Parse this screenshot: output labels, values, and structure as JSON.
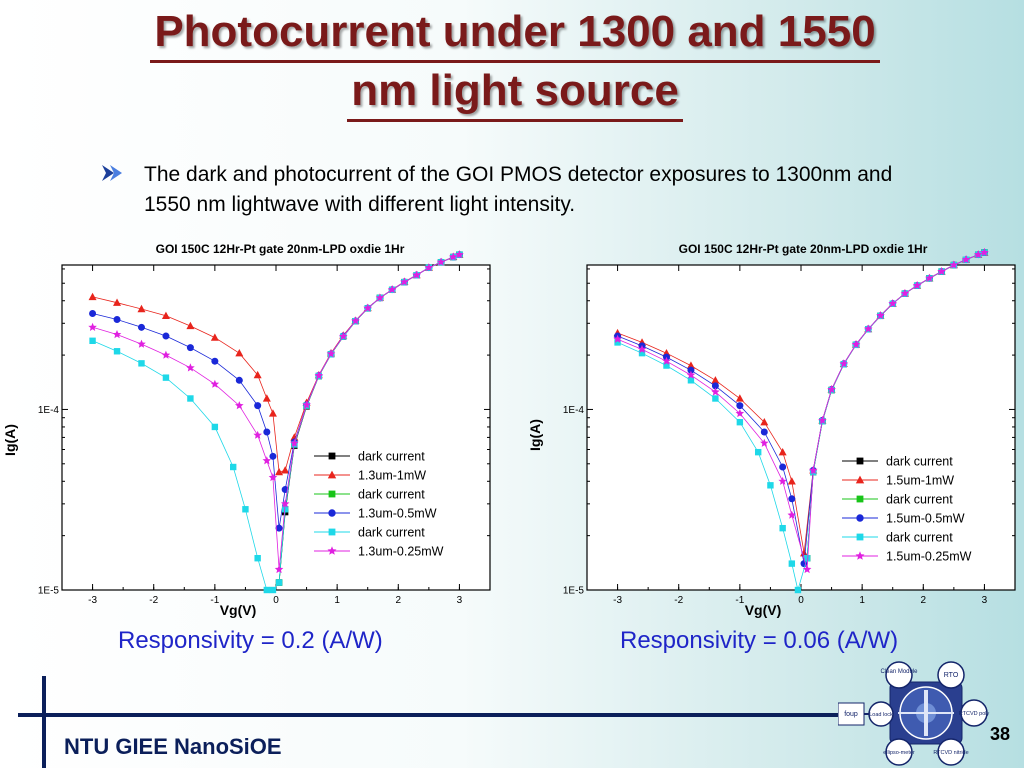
{
  "slide": {
    "title_line1": "Photocurrent under 1300 and 1550",
    "title_line2": "nm light source",
    "bullet": "The dark and photocurrent of the GOI PMOS detector exposures to 1300nm and 1550 nm lightwave with different light intensity.",
    "responsivity_left": "Responsivity = 0.2 (A/W)",
    "responsivity_right": "Responsivity = 0.06 (A/W)",
    "footer": "NTU GIEE NanoSiOE",
    "page_number": "38",
    "logo": {
      "labels": [
        "Clean Module",
        "RTO",
        "RTCVD poly",
        "RTCVD nitride",
        "ellipso-meter",
        "Load lock",
        "foup"
      ]
    },
    "colors": {
      "title": "#7a1a1a",
      "responsivity": "#1f25c8",
      "footer": "#0b1f5a"
    }
  },
  "chart_data": [
    {
      "type": "scatter",
      "title": "GOI 150C 12Hr-Pt gate 20nm-LPD oxdie 1Hr",
      "xlabel": "Vg(V)",
      "ylabel": "Ig(A)",
      "xlim": [
        -3.5,
        3.5
      ],
      "ylim_log10": [
        -5,
        -3.2
      ],
      "yscale": "log",
      "x_ticks": [
        "-3",
        "-2",
        "-1",
        "0",
        "1",
        "2",
        "3"
      ],
      "y_ticks": [
        "1E-5",
        "1E-4"
      ],
      "legend_position": "bottom-right",
      "series": [
        {
          "name": "dark current",
          "color": "#000000",
          "marker": "square",
          "x": [
            0.05,
            0.15,
            0.3,
            0.5,
            0.7,
            0.9,
            1.1,
            1.3,
            1.5,
            1.7,
            1.9,
            2.1,
            2.3,
            2.5,
            2.7,
            2.9,
            3.0
          ],
          "y": [
            1.1e-05,
            2.7e-05,
            6.3e-05,
            0.000104,
            0.000153,
            0.000202,
            0.000253,
            0.000308,
            0.000363,
            0.000415,
            0.00046,
            0.000507,
            0.000554,
            0.00061,
            0.000653,
            0.000698,
            0.00072
          ]
        },
        {
          "name": "1.3um-1mW",
          "color": "#e8241c",
          "marker": "triangle",
          "x": [
            -3.0,
            -2.6,
            -2.2,
            -1.8,
            -1.4,
            -1.0,
            -0.6,
            -0.3,
            -0.15,
            -0.05,
            0.05,
            0.15,
            0.3,
            0.5,
            0.7,
            0.9,
            1.1,
            1.3,
            1.5,
            1.7,
            1.9,
            2.1,
            2.3,
            2.5,
            2.7,
            2.9,
            3.0
          ],
          "y": [
            0.00042,
            0.00039,
            0.00036,
            0.00033,
            0.00029,
            0.00025,
            0.000205,
            0.000155,
            0.000115,
            9.5e-05,
            4.5e-05,
            4.6e-05,
            7e-05,
            0.000109,
            0.000155,
            0.000205,
            0.000257,
            0.00031,
            0.000365,
            0.000415,
            0.000462,
            0.00051,
            0.000555,
            0.00061,
            0.000655,
            0.0007,
            0.00072
          ]
        },
        {
          "name": "dark current",
          "color": "#18c418",
          "marker": "square",
          "x": [
            0.05,
            0.15,
            0.3,
            0.5,
            0.7,
            0.9,
            1.1,
            1.3,
            1.5,
            1.7,
            1.9,
            2.1,
            2.3,
            2.5,
            2.7,
            2.9,
            3.0
          ],
          "y": [
            1.1e-05,
            2.8e-05,
            6.4e-05,
            0.000105,
            0.000153,
            0.000202,
            0.000253,
            0.000308,
            0.000363,
            0.000415,
            0.00046,
            0.000507,
            0.000554,
            0.00061,
            0.000653,
            0.000698,
            0.00072
          ]
        },
        {
          "name": "1.3um-0.5mW",
          "color": "#1a28d8",
          "marker": "circle",
          "x": [
            -3.0,
            -2.6,
            -2.2,
            -1.8,
            -1.4,
            -1.0,
            -0.6,
            -0.3,
            -0.15,
            -0.05,
            0.05,
            0.15,
            0.3,
            0.5,
            0.7,
            0.9,
            1.1,
            1.3,
            1.5,
            1.7,
            1.9,
            2.1,
            2.3,
            2.5,
            2.7,
            2.9,
            3.0
          ],
          "y": [
            0.00034,
            0.000315,
            0.000285,
            0.000255,
            0.00022,
            0.000185,
            0.000145,
            0.000105,
            7.5e-05,
            5.5e-05,
            2.2e-05,
            3.6e-05,
            6.6e-05,
            0.000106,
            0.000154,
            0.000203,
            0.000255,
            0.000309,
            0.000364,
            0.000415,
            0.000461,
            0.000508,
            0.000555,
            0.00061,
            0.000654,
            0.000699,
            0.00072
          ]
        },
        {
          "name": "dark current",
          "color": "#1ed8e8",
          "marker": "square",
          "x": [
            -3.0,
            -2.6,
            -2.2,
            -1.8,
            -1.4,
            -1.0,
            -0.7,
            -0.5,
            -0.3,
            -0.15,
            -0.05,
            0.05,
            0.15,
            0.3,
            0.5,
            0.7,
            0.9,
            1.1,
            1.3,
            1.5,
            1.7,
            1.9,
            2.1,
            2.3,
            2.5,
            2.7,
            2.9,
            3.0
          ],
          "y": [
            0.00024,
            0.00021,
            0.00018,
            0.00015,
            0.000115,
            8e-05,
            4.8e-05,
            2.8e-05,
            1.5e-05,
            1e-05,
            1e-05,
            1.1e-05,
            2.8e-05,
            6.4e-05,
            0.000105,
            0.000153,
            0.000202,
            0.000253,
            0.000308,
            0.000363,
            0.000415,
            0.00046,
            0.000507,
            0.000554,
            0.00061,
            0.000653,
            0.000698,
            0.00072
          ]
        },
        {
          "name": "1.3um-0.25mW",
          "color": "#e020e0",
          "marker": "star",
          "x": [
            -3.0,
            -2.6,
            -2.2,
            -1.8,
            -1.4,
            -1.0,
            -0.6,
            -0.3,
            -0.15,
            -0.05,
            0.05,
            0.15,
            0.3,
            0.5,
            0.7,
            0.9,
            1.1,
            1.3,
            1.5,
            1.7,
            1.9,
            2.1,
            2.3,
            2.5,
            2.7,
            2.9,
            3.0
          ],
          "y": [
            0.000285,
            0.00026,
            0.00023,
            0.0002,
            0.00017,
            0.000138,
            0.000105,
            7.2e-05,
            5.2e-05,
            4.2e-05,
            1.3e-05,
            3e-05,
            6.5e-05,
            0.000106,
            0.000154,
            0.000203,
            0.000254,
            0.000309,
            0.000364,
            0.000415,
            0.000461,
            0.000508,
            0.000555,
            0.00061,
            0.000654,
            0.000699,
            0.00072
          ]
        }
      ]
    },
    {
      "type": "scatter",
      "title": "GOI 150C 12Hr-Pt gate 20nm-LPD oxdie 1Hr",
      "xlabel": "Vg(V)",
      "ylabel": "Ig(A)",
      "xlim": [
        -3.5,
        3.5
      ],
      "ylim_log10": [
        -5,
        -3.2
      ],
      "yscale": "log",
      "x_ticks": [
        "-3",
        "-2",
        "-1",
        "0",
        "1",
        "2",
        "3"
      ],
      "y_ticks": [
        "1E-5",
        "1E-4"
      ],
      "legend_position": "bottom-right",
      "series": [
        {
          "name": "dark current",
          "color": "#000000",
          "marker": "square",
          "x": [
            0.1,
            0.2,
            0.35,
            0.5,
            0.7,
            0.9,
            1.1,
            1.3,
            1.5,
            1.7,
            1.9,
            2.1,
            2.3,
            2.5,
            2.7,
            2.9,
            3.0
          ],
          "y": [
            1.5e-05,
            4.5e-05,
            8.6e-05,
            0.000128,
            0.000178,
            0.000228,
            0.000278,
            0.00033,
            0.000385,
            0.000438,
            0.000485,
            0.000532,
            0.00058,
            0.00063,
            0.000675,
            0.00072,
            0.00074
          ]
        },
        {
          "name": "1.5um-1mW",
          "color": "#e8241c",
          "marker": "triangle",
          "x": [
            -3.0,
            -2.6,
            -2.2,
            -1.8,
            -1.4,
            -1.0,
            -0.6,
            -0.3,
            -0.15,
            0.05,
            0.2,
            0.35,
            0.5,
            0.7,
            0.9,
            1.1,
            1.3,
            1.5,
            1.7,
            1.9,
            2.1,
            2.3,
            2.5,
            2.7,
            2.9,
            3.0
          ],
          "y": [
            0.000265,
            0.000235,
            0.000205,
            0.000175,
            0.000145,
            0.000115,
            8.5e-05,
            5.8e-05,
            4e-05,
            1.6e-05,
            4.6e-05,
            8.7e-05,
            0.000129,
            0.000179,
            0.000229,
            0.000279,
            0.000331,
            0.000386,
            0.000439,
            0.000486,
            0.000533,
            0.000581,
            0.000631,
            0.000676,
            0.00072,
            0.00074
          ]
        },
        {
          "name": "dark current",
          "color": "#18c418",
          "marker": "square",
          "x": [
            0.1,
            0.2,
            0.35,
            0.5,
            0.7,
            0.9,
            1.1,
            1.3,
            1.5,
            1.7,
            1.9,
            2.1,
            2.3,
            2.5,
            2.7,
            2.9,
            3.0
          ],
          "y": [
            1.5e-05,
            4.5e-05,
            8.6e-05,
            0.000128,
            0.000178,
            0.000228,
            0.000278,
            0.00033,
            0.000385,
            0.000438,
            0.000485,
            0.000532,
            0.00058,
            0.00063,
            0.000675,
            0.00072,
            0.00074
          ]
        },
        {
          "name": "1.5um-0.5mW",
          "color": "#1a28d8",
          "marker": "circle",
          "x": [
            -3.0,
            -2.6,
            -2.2,
            -1.8,
            -1.4,
            -1.0,
            -0.6,
            -0.3,
            -0.15,
            0.05,
            0.2,
            0.35,
            0.5,
            0.7,
            0.9,
            1.1,
            1.3,
            1.5,
            1.7,
            1.9,
            2.1,
            2.3,
            2.5,
            2.7,
            2.9,
            3.0
          ],
          "y": [
            0.000255,
            0.000225,
            0.000195,
            0.000165,
            0.000135,
            0.000105,
            7.5e-05,
            4.8e-05,
            3.2e-05,
            1.4e-05,
            4.6e-05,
            8.7e-05,
            0.000129,
            0.000179,
            0.000229,
            0.000279,
            0.000331,
            0.000386,
            0.000439,
            0.000486,
            0.000533,
            0.000581,
            0.000631,
            0.000676,
            0.00072,
            0.00074
          ]
        },
        {
          "name": "dark current",
          "color": "#1ed8e8",
          "marker": "square",
          "x": [
            -3.0,
            -2.6,
            -2.2,
            -1.8,
            -1.4,
            -1.0,
            -0.7,
            -0.5,
            -0.3,
            -0.15,
            -0.05,
            0.1,
            0.2,
            0.35,
            0.5,
            0.7,
            0.9,
            1.1,
            1.3,
            1.5,
            1.7,
            1.9,
            2.1,
            2.3,
            2.5,
            2.7,
            2.9,
            3.0
          ],
          "y": [
            0.000235,
            0.000205,
            0.000175,
            0.000145,
            0.000115,
            8.5e-05,
            5.8e-05,
            3.8e-05,
            2.2e-05,
            1.4e-05,
            1e-05,
            1.5e-05,
            4.5e-05,
            8.6e-05,
            0.000128,
            0.000178,
            0.000228,
            0.000278,
            0.00033,
            0.000385,
            0.000438,
            0.000485,
            0.000532,
            0.00058,
            0.00063,
            0.000675,
            0.00072,
            0.00074
          ]
        },
        {
          "name": "1.5um-0.25mW",
          "color": "#e020e0",
          "marker": "star",
          "x": [
            -3.0,
            -2.6,
            -2.2,
            -1.8,
            -1.4,
            -1.0,
            -0.6,
            -0.3,
            -0.15,
            0.1,
            0.2,
            0.35,
            0.5,
            0.7,
            0.9,
            1.1,
            1.3,
            1.5,
            1.7,
            1.9,
            2.1,
            2.3,
            2.5,
            2.7,
            2.9,
            3.0
          ],
          "y": [
            0.000245,
            0.000215,
            0.000185,
            0.000155,
            0.000125,
            9.5e-05,
            6.5e-05,
            4e-05,
            2.6e-05,
            1.3e-05,
            4.6e-05,
            8.7e-05,
            0.000129,
            0.000179,
            0.000229,
            0.000279,
            0.000331,
            0.000386,
            0.000439,
            0.000486,
            0.000533,
            0.000581,
            0.000631,
            0.000676,
            0.00072,
            0.00074
          ]
        }
      ]
    }
  ]
}
